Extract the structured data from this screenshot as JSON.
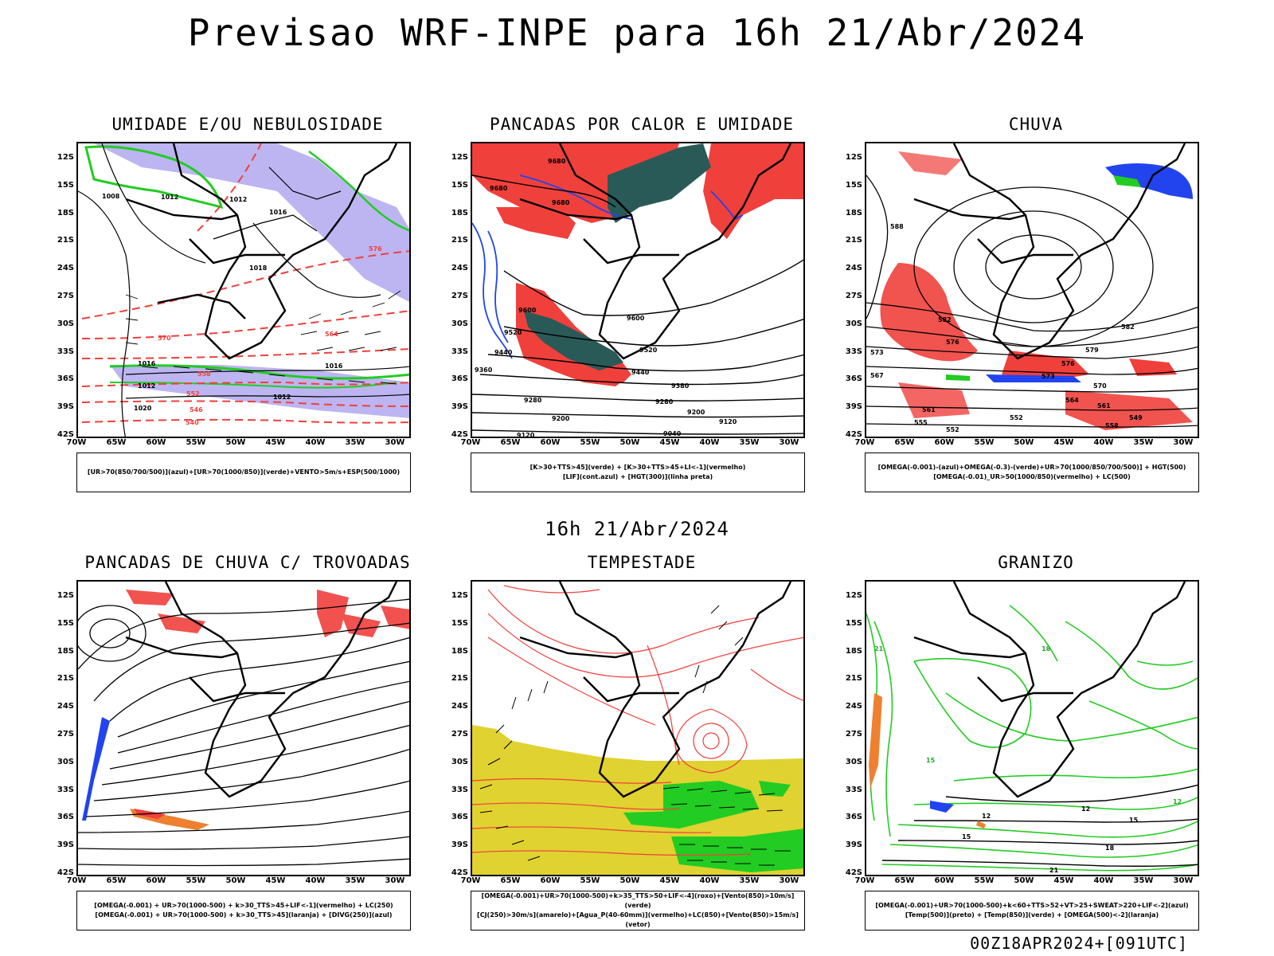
{
  "main_title": "Previsao WRF-INPE  para 16h 21/Abr/2024",
  "mid_title": "16h 21/Abr/2024",
  "footer": "00Z18APR2024+[091UTC]",
  "lat_labels": [
    "12S",
    "15S",
    "18S",
    "21S",
    "24S",
    "27S",
    "30S",
    "33S",
    "36S",
    "39S",
    "42S"
  ],
  "lon_labels": [
    "70W",
    "65W",
    "60W",
    "55W",
    "50W",
    "45W",
    "40W",
    "35W",
    "30W"
  ],
  "colors": {
    "red": "#f0403c",
    "green": "#22cc22",
    "blue": "#2244ee",
    "lavender": "#b0a8ee",
    "darkteal": "#2a5a58",
    "yellow": "#e0d230",
    "orange": "#ee8030"
  },
  "panels": [
    {
      "title": "UMIDADE E/OU NEBULOSIDADE",
      "legend": [
        "[UR>70(850/700/500)](azul)+[UR>70(1000/850)](verde)+VENTO>5m/s+ESP(500/1000)"
      ]
    },
    {
      "title": "PANCADAS POR CALOR E UMIDADE",
      "legend": [
        "[K>30+TTS>45](verde) + [K>30+TTS>45+LI<-1](vermelho)",
        "[LIF](cont.azul) + [HGT(300)](linha preta)"
      ]
    },
    {
      "title": "CHUVA",
      "legend": [
        "[OMEGA(-0.001)-(azul)+OMEGA(-0.3)-(verde)+UR>70(1000/850/700/500)] + HGT(500)",
        "[OMEGA(-0.01)_UR>50(1000/850)(vermelho) + LC(500)"
      ]
    },
    {
      "title": "PANCADAS DE CHUVA C/ TROVOADAS",
      "legend": [
        "[OMEGA(-0.001) + UR>70(1000-500) + k>30_TTS>45+LIF<-1](vermelho) + LC(250)",
        "[OMEGA(-0.001) + UR>70(1000-500) + k>30_TTS>45](laranja) + [DIVG(250)](azul)"
      ]
    },
    {
      "title": "TEMPESTADE",
      "legend": [
        "[OMEGA(-0.001)+UR>70(1000-500)+k>35_TTS>50+LIF<-4](roxo)+[Vento(850)>10m/s](verde)",
        "[CJ(250)>30m/s](amarelo)+[Agua_P(40-60mm)](vermelho)+LC(850)+[Vento(850)>15m/s](vetor)"
      ]
    },
    {
      "title": "GRANIZO",
      "legend": [
        "[OMEGA(-0.001)+UR>70(1000-500)+k<60+TTS>52+VT>25+SWEAT>220+LIF<-2](azul)",
        "[Temp(500)](preto) + [Temp(850)](verde) + [OMEGA(500)<-2](laranja)"
      ]
    }
  ],
  "contour_labels": {
    "p1": [
      "1012",
      "1008",
      "1016",
      "1012",
      "1016",
      "1018",
      "1012",
      "1016",
      "1012",
      "1020",
      "576",
      "570",
      "564",
      "558",
      "552",
      "546",
      "540"
    ],
    "p2": [
      "9680",
      "9680",
      "9680",
      "9600",
      "9520",
      "9440",
      "9360",
      "9280",
      "9200",
      "9120",
      "9040",
      "9600",
      "9520",
      "9440",
      "9380",
      "9280",
      "9200",
      "9120"
    ],
    "p3": [
      "588",
      "582",
      "576",
      "573",
      "567",
      "561",
      "555",
      "552",
      "549",
      "582",
      "579",
      "576",
      "573",
      "570",
      "564",
      "561",
      "558",
      "552"
    ],
    "p6": [
      "21",
      "18",
      "15",
      "12",
      "12",
      "15",
      "18",
      "21",
      "15",
      "12"
    ]
  }
}
